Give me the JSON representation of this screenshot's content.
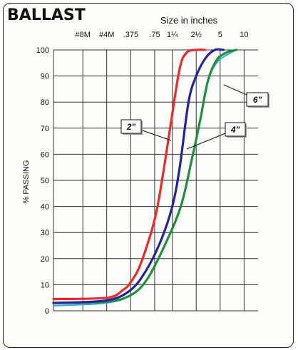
{
  "chart_data": {
    "type": "line",
    "title": "BALLAST",
    "x_axis_title": "Size in inches",
    "ylabel": "% PASSING",
    "x_scale": "log",
    "ylim": [
      0,
      100
    ],
    "y_ticks": [
      0,
      10,
      20,
      30,
      40,
      50,
      60,
      70,
      80,
      90,
      100
    ],
    "x_ticks": [
      {
        "label": "#8M",
        "inches": 0.0937
      },
      {
        "label": "#4M",
        "inches": 0.187
      },
      {
        "label": ".375",
        "inches": 0.375
      },
      {
        "label": ".75",
        "inches": 0.75
      },
      {
        "label": "1¼",
        "inches": 1.25
      },
      {
        "label": "2½",
        "inches": 2.5
      },
      {
        "label": "5",
        "inches": 5
      },
      {
        "label": "10",
        "inches": 10
      }
    ],
    "grid": true,
    "series": [
      {
        "name": "2\"",
        "color": "#ee2b2b",
        "points": [
          {
            "x": 0.04,
            "y": 4.5
          },
          {
            "x": 0.187,
            "y": 5
          },
          {
            "x": 0.3,
            "y": 8
          },
          {
            "x": 0.375,
            "y": 11
          },
          {
            "x": 0.5,
            "y": 18
          },
          {
            "x": 0.75,
            "y": 35
          },
          {
            "x": 0.95,
            "y": 52
          },
          {
            "x": 1.2,
            "y": 72
          },
          {
            "x": 1.55,
            "y": 93
          },
          {
            "x": 1.9,
            "y": 99
          },
          {
            "x": 2.5,
            "y": 100
          },
          {
            "x": 3.2,
            "y": 100
          }
        ]
      },
      {
        "name": "",
        "color": "#26249a",
        "points": [
          {
            "x": 0.04,
            "y": 3
          },
          {
            "x": 0.187,
            "y": 4
          },
          {
            "x": 0.375,
            "y": 8
          },
          {
            "x": 0.6,
            "y": 16
          },
          {
            "x": 0.9,
            "y": 27
          },
          {
            "x": 1.25,
            "y": 40
          },
          {
            "x": 1.55,
            "y": 55
          },
          {
            "x": 2.0,
            "y": 80
          },
          {
            "x": 2.5,
            "y": 90
          },
          {
            "x": 3.3,
            "y": 97
          },
          {
            "x": 4.3,
            "y": 100
          },
          {
            "x": 5.5,
            "y": 100
          }
        ]
      },
      {
        "name": "4\"",
        "color": "#1f8f3e",
        "points": [
          {
            "x": 0.04,
            "y": 3
          },
          {
            "x": 0.187,
            "y": 3.5
          },
          {
            "x": 0.375,
            "y": 6
          },
          {
            "x": 0.6,
            "y": 12
          },
          {
            "x": 1.0,
            "y": 25
          },
          {
            "x": 1.6,
            "y": 40
          },
          {
            "x": 2.2,
            "y": 58
          },
          {
            "x": 2.8,
            "y": 73
          },
          {
            "x": 3.5,
            "y": 88
          },
          {
            "x": 4.5,
            "y": 96
          },
          {
            "x": 6.0,
            "y": 99
          },
          {
            "x": 8.0,
            "y": 100
          }
        ]
      },
      {
        "name": "6\"",
        "color": "#2aa6c8",
        "points": [
          {
            "x": 0.04,
            "y": 2
          },
          {
            "x": 0.187,
            "y": 3
          },
          {
            "x": 0.375,
            "y": 6
          },
          {
            "x": 0.6,
            "y": 12
          },
          {
            "x": 1.0,
            "y": 25
          },
          {
            "x": 1.6,
            "y": 40
          },
          {
            "x": 2.2,
            "y": 58
          },
          {
            "x": 2.8,
            "y": 73
          },
          {
            "x": 3.5,
            "y": 88
          },
          {
            "x": 4.5,
            "y": 95
          },
          {
            "x": 6.0,
            "y": 98
          },
          {
            "x": 8.0,
            "y": 100
          }
        ]
      }
    ],
    "annotations": [
      {
        "text": "2\"",
        "series": "2\""
      },
      {
        "text": "4\"",
        "series": "4\""
      },
      {
        "text": "6\"",
        "series": "6\""
      }
    ]
  }
}
